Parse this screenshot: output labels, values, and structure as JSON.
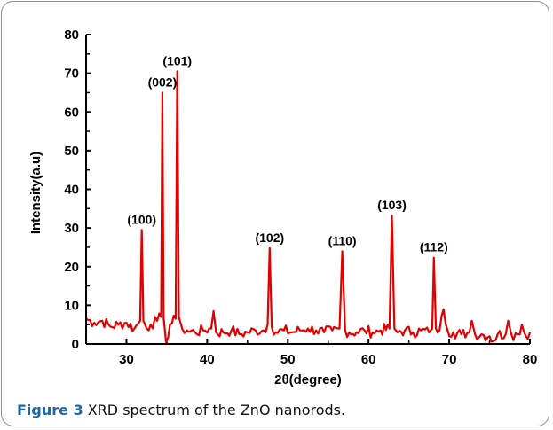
{
  "caption": {
    "figure_label": "Figure 3",
    "text": "XRD spectrum of the ZnO nanorods."
  },
  "colors": {
    "series": "#e00000",
    "caption_label": "#1b6aa5",
    "axis": "#000000",
    "frame": "#8c8c8c"
  },
  "chart_data": {
    "type": "line",
    "title": "",
    "xlabel": "2θ(degree)",
    "ylabel": "Intensity(a.u)",
    "xlim": [
      25,
      80
    ],
    "ylim": [
      0,
      80
    ],
    "xticks": [
      30,
      40,
      50,
      60,
      70,
      80
    ],
    "yticks": [
      0,
      10,
      20,
      30,
      40,
      50,
      60,
      70,
      80
    ],
    "grid": false,
    "legend": "none",
    "series": [
      {
        "x": [
          25.0,
          26.0,
          27.0,
          28.0,
          29.0,
          30.0,
          31.0,
          31.7,
          31.9,
          32.1,
          32.5,
          33.0,
          33.8,
          34.3,
          34.45,
          34.6,
          34.9,
          35.4,
          36.1,
          36.3,
          36.5,
          36.9,
          37.5,
          38.5,
          39.5,
          40.5,
          40.8,
          41.1,
          42.0,
          43.0,
          44.0,
          45.0,
          46.0,
          47.0,
          47.5,
          47.75,
          48.0,
          48.5,
          49.5,
          50.5,
          51.5,
          52.5,
          53.5,
          54.5,
          55.5,
          56.4,
          56.75,
          57.1,
          57.6,
          58.5,
          59.5,
          60.5,
          61.5,
          62.6,
          62.9,
          63.2,
          63.6,
          64.5,
          65.5,
          66.5,
          67.5,
          67.9,
          68.1,
          68.35,
          68.8,
          69.3,
          69.8,
          70.5,
          71.5,
          72.5,
          72.8,
          73.2,
          74.0,
          75.0,
          75.5,
          76.0,
          77.0,
          77.3,
          77.7,
          78.5,
          79.0,
          79.5,
          80.0
        ],
        "y": [
          6.5,
          5.5,
          6.0,
          4.5,
          5.0,
          5.5,
          4.0,
          6.0,
          29.5,
          6.0,
          4.0,
          5.0,
          6.0,
          7.0,
          65.0,
          7.0,
          0.5,
          5.0,
          6.5,
          70.5,
          7.0,
          4.0,
          3.5,
          3.0,
          3.5,
          4.0,
          8.5,
          3.0,
          3.0,
          3.5,
          2.5,
          3.0,
          3.5,
          3.5,
          5.0,
          24.8,
          4.5,
          3.0,
          3.5,
          3.0,
          3.5,
          4.0,
          3.5,
          3.0,
          3.5,
          4.0,
          24.0,
          3.5,
          3.0,
          3.0,
          3.5,
          3.0,
          3.5,
          4.0,
          33.2,
          4.0,
          3.0,
          3.5,
          3.0,
          3.5,
          3.0,
          4.0,
          22.3,
          4.0,
          3.5,
          9.0,
          3.5,
          3.0,
          2.5,
          3.0,
          6.0,
          2.5,
          2.5,
          2.0,
          0.8,
          2.5,
          2.5,
          6.0,
          2.5,
          2.5,
          5.0,
          2.0,
          3.0
        ]
      }
    ],
    "peak_labels": [
      {
        "text": "(100)",
        "x": 31.9,
        "y": 29.5
      },
      {
        "text": "(002)",
        "x": 34.45,
        "y": 65.0
      },
      {
        "text": "(101)",
        "x": 36.3,
        "y": 70.5
      },
      {
        "text": "(102)",
        "x": 47.75,
        "y": 24.8
      },
      {
        "text": "(110)",
        "x": 56.75,
        "y": 24.0
      },
      {
        "text": "(103)",
        "x": 62.9,
        "y": 33.2
      },
      {
        "text": "(112)",
        "x": 68.1,
        "y": 22.3
      }
    ]
  }
}
